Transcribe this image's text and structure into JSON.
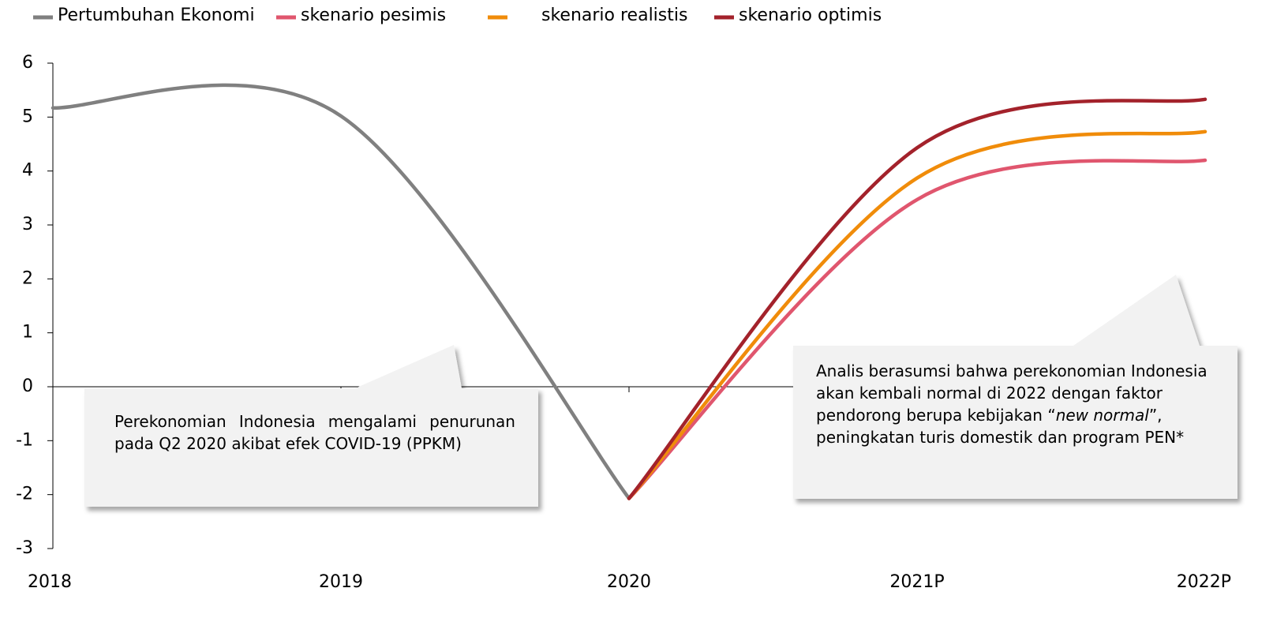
{
  "chart_data": {
    "type": "line",
    "categories": [
      "2018",
      "2019",
      "2020",
      "2021P",
      "2022P"
    ],
    "series": [
      {
        "name": "Pertumbuhan Ekonomi",
        "color": "#808080",
        "values": [
          5.17,
          5.02,
          -2.07,
          null,
          null
        ]
      },
      {
        "name": "skenario pesimis",
        "color": "#e0566e",
        "values": [
          null,
          null,
          -2.07,
          3.47,
          4.2
        ]
      },
      {
        "name": "skenario realistis",
        "color": "#f08c0a",
        "values": [
          null,
          null,
          -2.07,
          3.87,
          4.73
        ]
      },
      {
        "name": "skenario optimis",
        "color": "#a3222b",
        "values": [
          null,
          null,
          -2.07,
          4.43,
          5.33
        ]
      }
    ],
    "ylim": [
      -3,
      6
    ],
    "yticks": [
      -3,
      -2,
      -1,
      0,
      1,
      2,
      3,
      4,
      5,
      6
    ],
    "annotations": [
      {
        "text": "Perekonomian Indonesia mengalami penurunan pada Q2 2020 akibat efek COVID-19 (PPKM)"
      },
      {
        "text": [
          "Analis berasumsi bahwa perekonomian Indonesia  akan kembali normal di 2022 dengan faktor pendorong berupa kebijakan “",
          "new normal",
          "”, peningkatan turis domestik dan program PEN*"
        ]
      }
    ]
  }
}
